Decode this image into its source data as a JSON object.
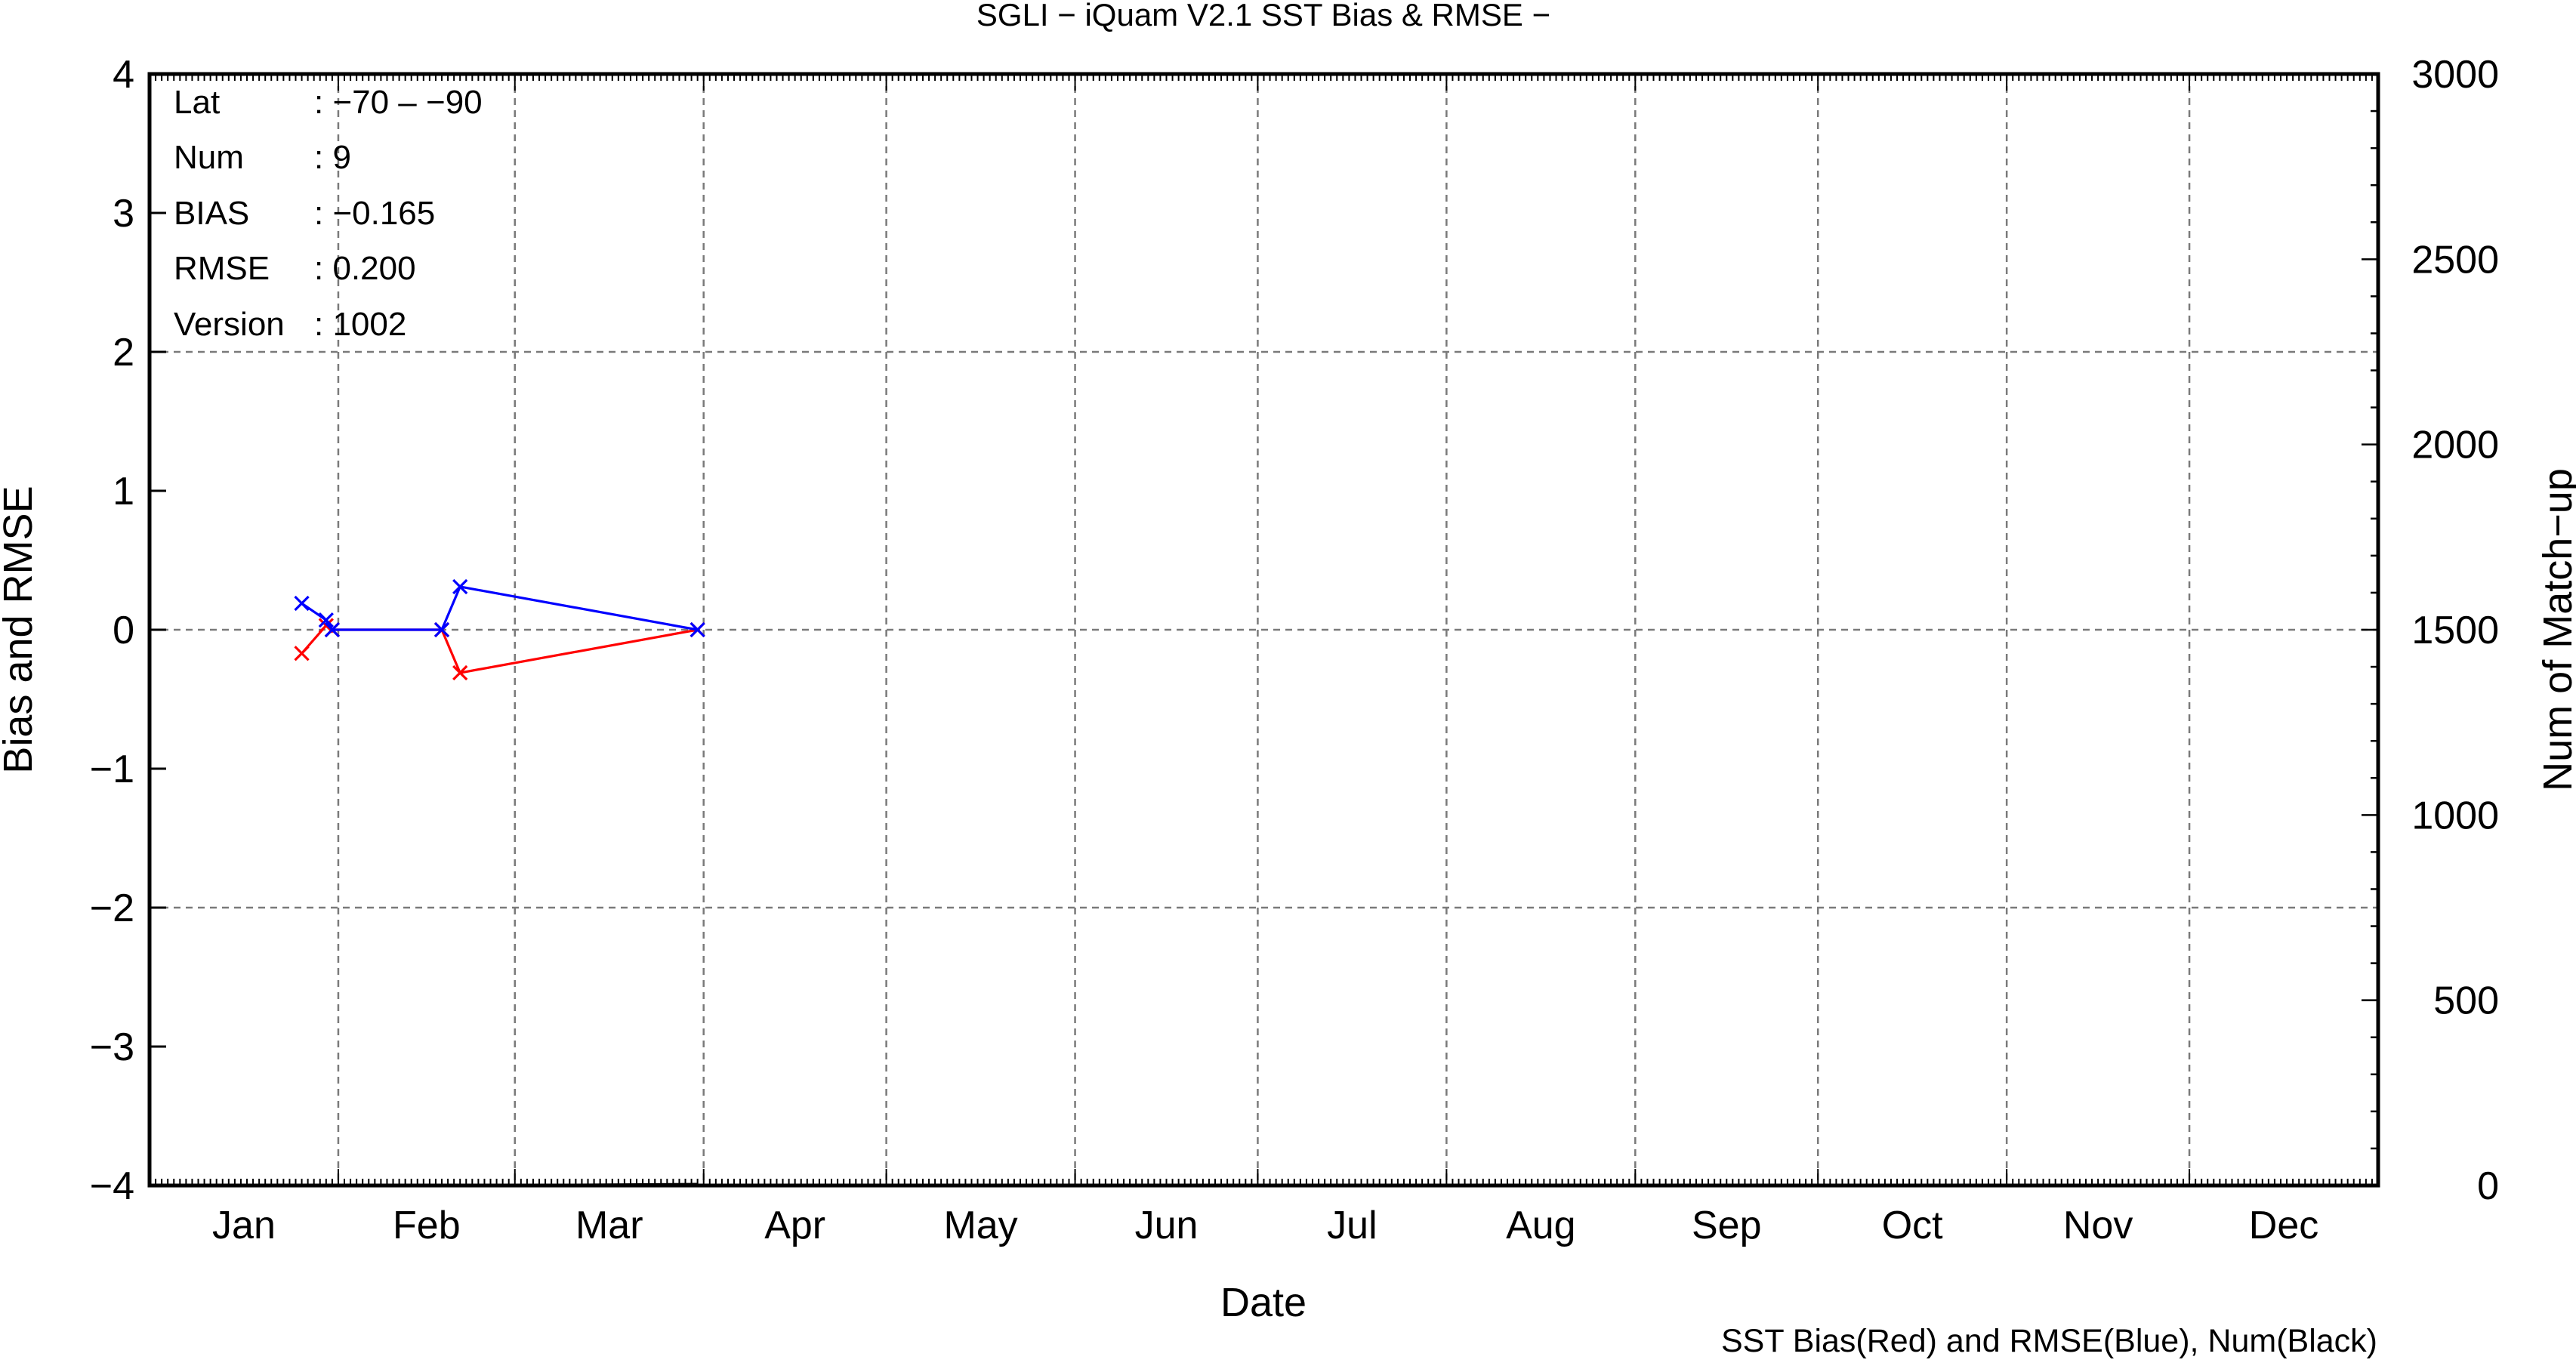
{
  "chart_data": {
    "type": "line",
    "title": "SGLI − iQuam V2.1 SST Bias & RMSE  −",
    "xlabel": "Date",
    "ylabel": "Bias and RMSE",
    "y2label": "Num of Match−up",
    "footnote": "SST Bias(Red) and RMSE(Blue), Num(Black)",
    "x_categories": [
      "Jan",
      "Feb",
      "Mar",
      "Apr",
      "May",
      "Jun",
      "Jul",
      "Aug",
      "Sep",
      "Oct",
      "Nov",
      "Dec"
    ],
    "ylim": [
      -4,
      4
    ],
    "y_ticks": [
      "4",
      "3",
      "2",
      "1",
      "0",
      "−1",
      "−2",
      "−3",
      "−4"
    ],
    "y2lim": [
      0,
      3000
    ],
    "y2_ticks": [
      "3000",
      "2500",
      "2000",
      "1500",
      "1000",
      "500",
      "0"
    ],
    "grid": true,
    "stats": {
      "lat_label": "Lat",
      "lat_value": ": −70 – −90",
      "num_label": "Num",
      "num_value": ": 9",
      "bias_label": "BIAS",
      "bias_value": ": −0.165",
      "rmse_label": "RMSE",
      "rmse_value": ": 0.200",
      "version_label": "Version",
      "version_value": ": 1002"
    },
    "series": [
      {
        "color": "#ff0000",
        "axis": "left",
        "points": [
          {
            "x": "Jan 26",
            "y": -0.17
          },
          {
            "x": "Jan 30",
            "y": 0.03
          },
          {
            "x": "Jan 31",
            "y": 0.0
          },
          {
            "x": "Feb 18",
            "y": 0.0
          },
          {
            "x": "Feb 21",
            "y": -0.31
          },
          {
            "x": "Mar 31",
            "y": 0.0
          }
        ]
      },
      {
        "color": "#0000ff",
        "axis": "left",
        "points": [
          {
            "x": "Jan 26",
            "y": 0.19
          },
          {
            "x": "Jan 30",
            "y": 0.07
          },
          {
            "x": "Jan 31",
            "y": 0.0
          },
          {
            "x": "Feb 18",
            "y": 0.0
          },
          {
            "x": "Feb 21",
            "y": 0.31
          },
          {
            "x": "Mar 31",
            "y": 0.0
          }
        ]
      },
      {
        "color": "#000000",
        "axis": "right",
        "points": [
          {
            "x": "Mar 1",
            "y": 0
          },
          {
            "x": "Mar 31",
            "y": 3
          }
        ]
      }
    ]
  }
}
